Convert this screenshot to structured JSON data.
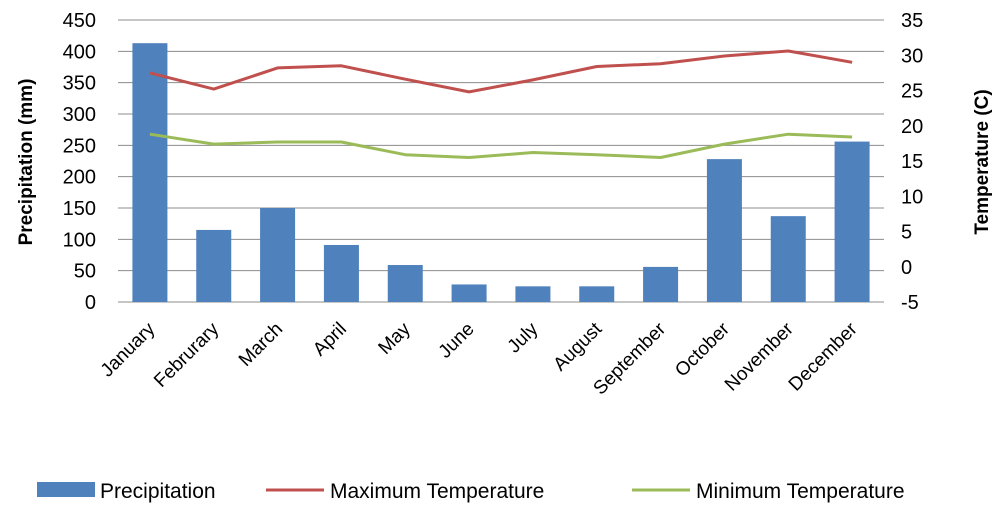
{
  "chart_data": {
    "type": "bar",
    "categories": [
      "January",
      "Februrary",
      "March",
      "April",
      "May",
      "June",
      "July",
      "August",
      "September",
      "October",
      "November",
      "December"
    ],
    "series": [
      {
        "name": "Precipitation",
        "type": "bar",
        "axis": "left",
        "color": "#4F81BD",
        "values": [
          413,
          115,
          150,
          91,
          59,
          28,
          25,
          25,
          56,
          228,
          137,
          256
        ]
      },
      {
        "name": "Maximum Temperature",
        "type": "line",
        "axis": "right",
        "color": "#C0504D",
        "values": [
          27.5,
          25.2,
          28.2,
          28.5,
          26.6,
          24.8,
          26.5,
          28.4,
          28.8,
          29.9,
          30.6,
          29.0
        ]
      },
      {
        "name": "Minimum Temperature",
        "type": "line",
        "axis": "right",
        "color": "#9BBB59",
        "values": [
          18.8,
          17.4,
          17.7,
          17.7,
          15.9,
          15.5,
          16.2,
          15.9,
          15.5,
          17.4,
          18.8,
          18.4
        ]
      }
    ],
    "ylabel": "Precipitation (mm)",
    "y2label": "Temperature (C)",
    "ylim": [
      0,
      450
    ],
    "y2lim": [
      -5,
      35
    ],
    "yticks": [
      "0",
      "50",
      "100",
      "150",
      "200",
      "250",
      "300",
      "350",
      "400",
      "450"
    ],
    "y2ticks": [
      "-5",
      "0",
      "5",
      "10",
      "15",
      "20",
      "25",
      "30",
      "35"
    ],
    "grid": true,
    "legend_position": "bottom"
  }
}
